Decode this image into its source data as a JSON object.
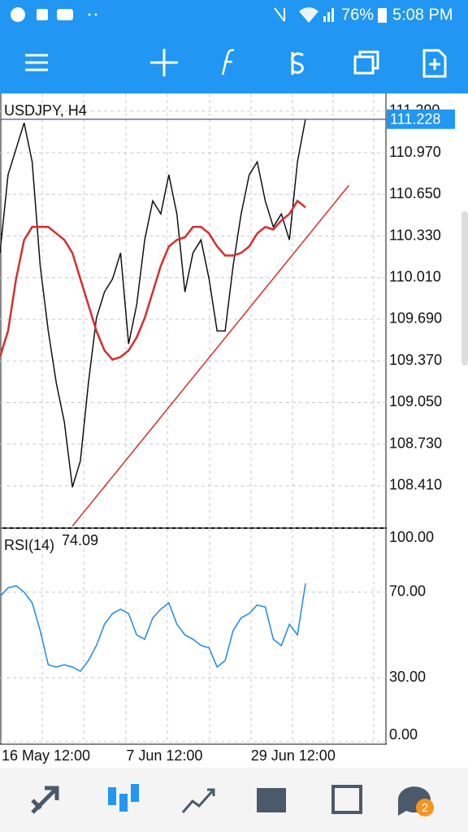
{
  "status_bar": {
    "battery": "76%",
    "time": "5:08 PM"
  },
  "nav": {
    "badge": "2"
  },
  "chart_data": [
    {
      "type": "line",
      "title": "USDJPY, H4",
      "current_price": 111.228,
      "current_price_color": "#2196f3",
      "xlim": [
        0,
        38
      ],
      "ylim": [
        108.085,
        111.426
      ],
      "yticks": [
        {
          "value": 108.41,
          "label": "108.410"
        },
        {
          "value": 108.73,
          "label": "108.730"
        },
        {
          "value": 109.05,
          "label": "109.050"
        },
        {
          "value": 109.37,
          "label": "109.370"
        },
        {
          "value": 109.69,
          "label": "109.690"
        },
        {
          "value": 110.01,
          "label": "110.010"
        },
        {
          "value": 110.33,
          "label": "110.330"
        },
        {
          "value": 110.65,
          "label": "110.650"
        },
        {
          "value": 110.97,
          "label": "110.970"
        },
        {
          "value": 111.29,
          "label": "111.290"
        }
      ],
      "series": [
        {
          "color": "#111111",
          "values": [
            110.2,
            110.8,
            111.0,
            111.2,
            110.9,
            110.1,
            109.6,
            109.2,
            108.9,
            108.4,
            108.6,
            109.2,
            109.7,
            109.9,
            110.0,
            110.2,
            109.5,
            109.8,
            110.3,
            110.6,
            110.5,
            110.8,
            110.5,
            109.9,
            110.2,
            110.3,
            110.0,
            109.6,
            109.6,
            110.1,
            110.5,
            110.8,
            110.9,
            110.6,
            110.4,
            110.5,
            110.3,
            110.9,
            111.23
          ]
        },
        {
          "color": "#d32f2f",
          "values": [
            109.4,
            109.6,
            110.0,
            110.3,
            110.4,
            110.4,
            110.4,
            110.35,
            110.3,
            110.2,
            110.0,
            109.8,
            109.6,
            109.45,
            109.38,
            109.4,
            109.45,
            109.55,
            109.7,
            109.9,
            110.1,
            110.25,
            110.3,
            110.32,
            110.4,
            110.4,
            110.35,
            110.25,
            110.18,
            110.18,
            110.2,
            110.25,
            110.35,
            110.4,
            110.38,
            110.45,
            110.5,
            110.6,
            110.55
          ]
        },
        {
          "color": "#d32f2f",
          "x": [
            9,
            43.4
          ],
          "values": [
            108.1,
            110.72
          ]
        }
      ]
    },
    {
      "type": "line",
      "title": "RSI(14)",
      "current": 74.09,
      "xlim": [
        0,
        38
      ],
      "ylim": [
        0,
        100
      ],
      "yticks": [
        {
          "value": 0,
          "label": "0.00"
        },
        {
          "value": 30,
          "label": "30.00"
        },
        {
          "value": 70,
          "label": "70.00"
        },
        {
          "value": 100,
          "label": "100.00"
        }
      ],
      "xticks": [
        {
          "value": 0,
          "label": "16 May 12:00"
        },
        {
          "value": 15.5,
          "label": "7 Jun 12:00"
        },
        {
          "value": 31,
          "label": "29 Jun 12:00"
        }
      ],
      "series": [
        {
          "color": "#1e88e5",
          "values": [
            68,
            72,
            73,
            70,
            65,
            52,
            36,
            35,
            36,
            35,
            33,
            38,
            45,
            55,
            60,
            62,
            60,
            50,
            48,
            58,
            62,
            65,
            55,
            50,
            48,
            45,
            44,
            35,
            38,
            52,
            58,
            60,
            64,
            63,
            48,
            45,
            55,
            50,
            74.09
          ]
        }
      ]
    }
  ]
}
